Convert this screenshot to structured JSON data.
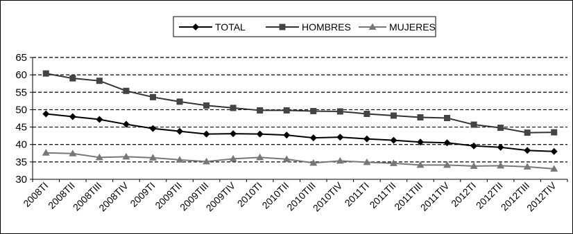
{
  "chart_data": {
    "type": "line",
    "categories": [
      "2008TI",
      "2008TII",
      "2008TIII",
      "2008TIV",
      "2009TI",
      "2009TII",
      "2009TIII",
      "2009TIV",
      "2010TI",
      "2010TII",
      "2010TIII",
      "2010TIV",
      "2011TI",
      "2011TII",
      "2011TIII",
      "2011TIV",
      "2012TI",
      "2012TII",
      "2012TIII",
      "2012TIV"
    ],
    "series": [
      {
        "name": "TOTAL",
        "marker": "diamond",
        "values": [
          48.8,
          48.0,
          47.2,
          45.8,
          44.6,
          43.8,
          43.0,
          43.1,
          43.0,
          42.7,
          41.9,
          42.1,
          41.6,
          41.2,
          40.7,
          40.5,
          39.6,
          39.2,
          38.3,
          38.0
        ]
      },
      {
        "name": "HOMBRES",
        "marker": "square",
        "values": [
          60.4,
          59.0,
          58.3,
          55.4,
          53.6,
          52.3,
          51.2,
          50.5,
          49.8,
          49.8,
          49.6,
          49.5,
          48.8,
          48.3,
          47.8,
          47.6,
          45.7,
          44.8,
          43.4,
          43.5
        ]
      },
      {
        "name": "MUJERES",
        "marker": "triangle",
        "values": [
          37.6,
          37.4,
          36.3,
          36.5,
          36.2,
          35.6,
          35.1,
          35.9,
          36.3,
          35.8,
          34.7,
          35.3,
          34.9,
          34.6,
          34.1,
          34.1,
          33.8,
          33.9,
          33.6,
          33.0
        ]
      }
    ],
    "title": "",
    "xlabel": "",
    "ylabel": "",
    "ylim": [
      30,
      65
    ],
    "yticks": [
      30,
      35,
      40,
      45,
      50,
      55,
      60,
      65
    ],
    "grid": "horizontal-dashed",
    "legend": "top-center",
    "colors": {
      "lines": "#000000",
      "grid": "#000000",
      "background": "#ffffff"
    }
  }
}
